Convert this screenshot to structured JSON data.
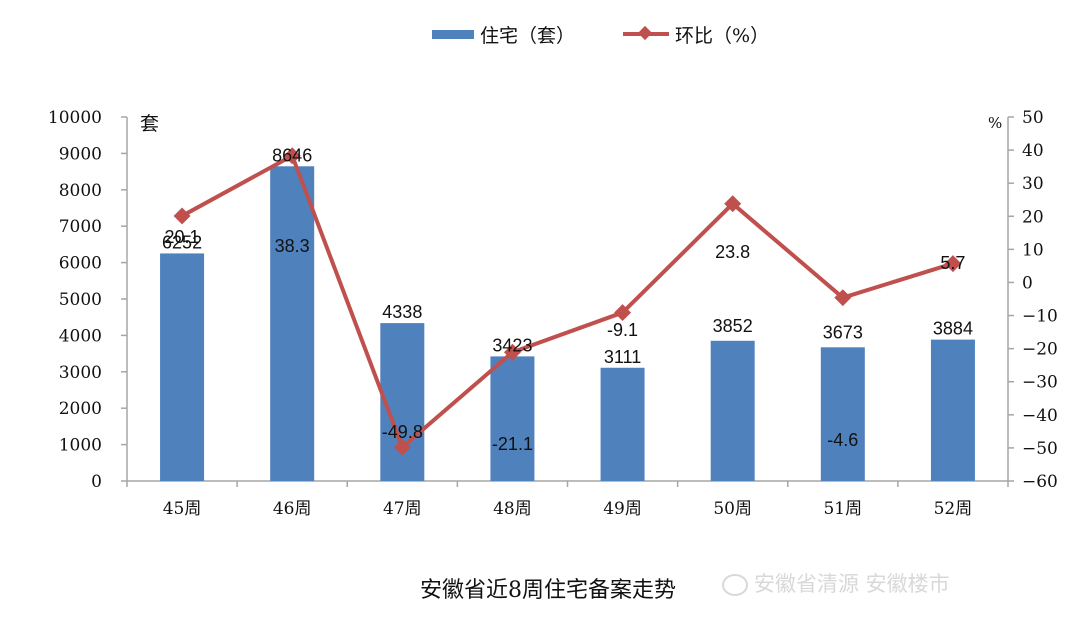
{
  "chart_data": {
    "type": "bar+line",
    "title": "安徽省近8周住宅备案走势",
    "categories": [
      "45周",
      "46周",
      "47周",
      "48周",
      "49周",
      "50周",
      "51周",
      "52周"
    ],
    "series": [
      {
        "name": "住宅（套）",
        "type": "bar",
        "axis": "left",
        "color": "#4F81BD",
        "values": [
          6252,
          8646,
          4338,
          3423,
          3111,
          3852,
          3673,
          3884
        ]
      },
      {
        "name": "环比（%）",
        "type": "line",
        "axis": "right",
        "color": "#C0504D",
        "marker": "diamond",
        "values": [
          20.1,
          38.3,
          -49.8,
          -21.1,
          -9.1,
          23.8,
          -4.6,
          5.7
        ]
      }
    ],
    "left_axis": {
      "unit_label": "套",
      "ylim": [
        0,
        10000
      ],
      "ticks": [
        0,
        1000,
        2000,
        3000,
        4000,
        5000,
        6000,
        7000,
        8000,
        9000,
        10000
      ]
    },
    "right_axis": {
      "unit_label": "%",
      "ylim": [
        -60,
        50
      ],
      "ticks": [
        -60,
        -50,
        -40,
        -30,
        -20,
        -10,
        0,
        10,
        20,
        30,
        40,
        50
      ]
    },
    "legend": {
      "position": "top",
      "entries": [
        "住宅（套）",
        "环比（%）"
      ]
    },
    "grid": false
  },
  "legend": {
    "bar_label": "住宅（套）",
    "line_label": "环比（%）"
  },
  "title": "安徽省近8周住宅备案走势",
  "watermark": "安徽省清源 安徽楼市"
}
